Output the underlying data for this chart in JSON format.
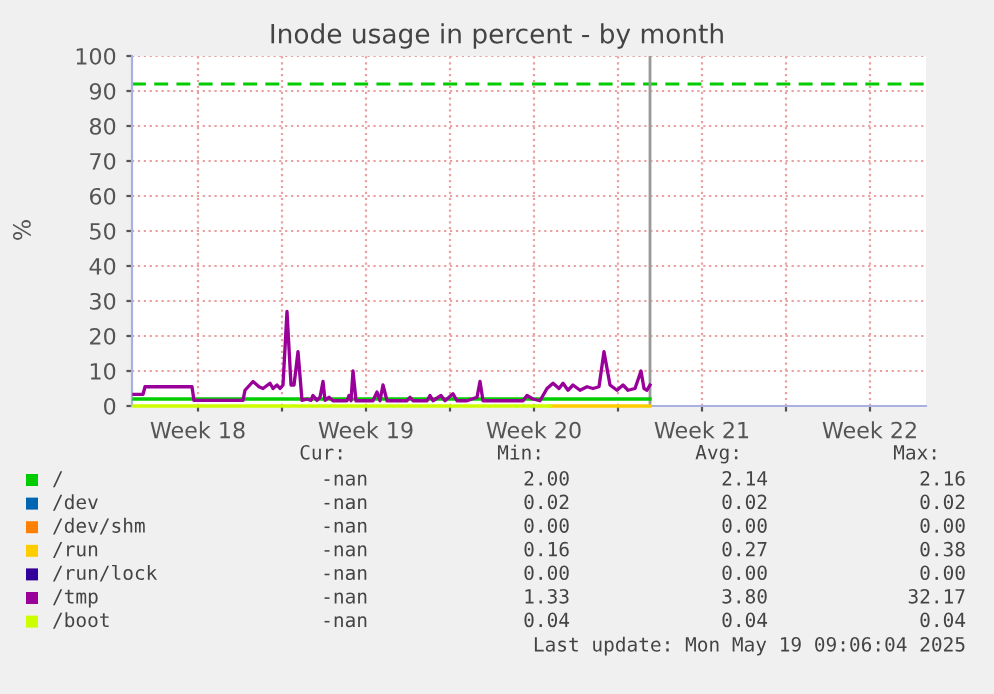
{
  "chart_data": {
    "type": "line",
    "title": "Inode usage in percent - by month",
    "ylabel": "%",
    "xlim": [
      "2025-04-28T18:00",
      "2025-05-31T20:00"
    ],
    "ylim": [
      0,
      100
    ],
    "xticks": [
      {
        "value": "2025-05-01T12:00",
        "label": "Week 18"
      },
      {
        "value": "2025-05-05T00:00",
        "label": null
      },
      {
        "value": "2025-05-08T12:00",
        "label": "Week 19"
      },
      {
        "value": "2025-05-12T00:00",
        "label": null
      },
      {
        "value": "2025-05-15T12:00",
        "label": "Week 20"
      },
      {
        "value": "2025-05-19T00:00",
        "label": null
      },
      {
        "value": "2025-05-22T12:00",
        "label": "Week 21"
      },
      {
        "value": "2025-05-26T00:00",
        "label": null
      },
      {
        "value": "2025-05-29T12:00",
        "label": "Week 22"
      }
    ],
    "yticks": [
      0,
      10,
      20,
      30,
      40,
      50,
      60,
      70,
      80,
      90,
      100
    ],
    "grid": true,
    "legend": "bottom",
    "line_style": "solid",
    "series": [
      {
        "name": "/",
        "color": "#00cc00",
        "x": [
          "2025-04-28T20:00",
          "2025-05-20T08:00"
        ],
        "values": [
          2,
          2
        ]
      },
      {
        "name": "/dev",
        "color": "#0066b3"
      },
      {
        "name": "/dev/shm",
        "color": "#ff8000"
      },
      {
        "name": "/run",
        "color": "#ffcc00",
        "x": [
          "2025-05-16T04:00",
          "2025-05-20T08:00"
        ],
        "values": [
          0,
          0
        ]
      },
      {
        "name": "/run/lock",
        "color": "#330099"
      },
      {
        "name": "/tmp",
        "color": "#990099",
        "x": [
          "2025-04-28T20:00",
          "2025-04-29T05:00",
          "2025-04-29T07:00",
          "2025-05-01T06:00",
          "2025-05-01T08:00",
          "2025-05-03T09:00",
          "2025-05-03T11:00",
          "2025-05-03T19:00",
          "2025-05-04T01:00",
          "2025-05-04T05:00",
          "2025-05-04T12:00",
          "2025-05-04T15:00",
          "2025-05-04T19:00",
          "2025-05-04T22:00",
          "2025-05-05T01:00",
          "2025-05-05T05:00",
          "2025-05-05T09:00",
          "2025-05-05T12:00",
          "2025-05-05T16:00",
          "2025-05-05T20:00",
          "2025-05-06T01:00",
          "2025-05-06T05:00",
          "2025-05-06T07:00",
          "2025-05-06T11:00",
          "2025-05-06T14:00",
          "2025-05-06T17:00",
          "2025-05-06T19:00",
          "2025-05-06T23:00",
          "2025-05-07T03:00",
          "2025-05-07T17:00",
          "2025-05-07T19:00",
          "2025-05-07T21:00",
          "2025-05-07T23:00",
          "2025-05-08T02:00",
          "2025-05-08T19:00",
          "2025-05-08T23:00",
          "2025-05-09T02:00",
          "2025-05-09T05:00",
          "2025-05-09T09:00",
          "2025-05-10T05:00",
          "2025-05-10T08:00",
          "2025-05-10T11:00",
          "2025-05-11T01:00",
          "2025-05-11T04:00",
          "2025-05-11T07:00",
          "2025-05-11T15:00",
          "2025-05-11T19:00",
          "2025-05-12T03:00",
          "2025-05-12T07:00",
          "2025-05-12T17:00",
          "2025-05-13T03:00",
          "2025-05-13T06:00",
          "2025-05-13T09:00",
          "2025-05-15T01:00",
          "2025-05-15T05:00",
          "2025-05-15T11:00",
          "2025-05-15T18:00",
          "2025-05-16T01:00",
          "2025-05-16T07:00",
          "2025-05-16T13:00",
          "2025-05-16T17:00",
          "2025-05-16T22:00",
          "2025-05-17T03:00",
          "2025-05-17T10:00",
          "2025-05-17T17:00",
          "2025-05-17T23:00",
          "2025-05-18T05:00",
          "2025-05-18T10:00",
          "2025-05-18T16:00",
          "2025-05-18T23:00",
          "2025-05-19T05:00",
          "2025-05-19T10:00",
          "2025-05-19T17:00",
          "2025-05-19T23:00",
          "2025-05-20T02:00",
          "2025-05-20T05:00",
          "2025-05-20T08:00"
        ],
        "values": [
          3.3,
          3.3,
          5.5,
          5.5,
          1.6,
          1.6,
          4.5,
          7,
          5.5,
          5,
          6.5,
          5,
          6,
          5,
          6,
          27,
          6,
          6,
          15.5,
          1.6,
          2,
          1.6,
          3,
          1.6,
          2.5,
          7,
          1.6,
          2.5,
          1.5,
          1.5,
          3,
          1.5,
          10,
          1.5,
          1.5,
          4,
          1.5,
          6,
          1.5,
          1.5,
          2.5,
          1.5,
          1.5,
          3,
          1.5,
          3,
          1.5,
          3.5,
          1.5,
          1.5,
          2.5,
          7,
          1.5,
          1.5,
          3,
          2,
          1.5,
          5,
          6.5,
          5,
          6.5,
          4.5,
          6,
          4.5,
          5.5,
          5,
          5.5,
          15.5,
          6,
          4.5,
          6,
          4.5,
          5,
          10,
          5,
          4.5,
          6
        ]
      },
      {
        "name": "/boot",
        "color": "#ccff00",
        "x": [
          "2025-04-28T20:00",
          "2025-05-16T04:00"
        ],
        "values": [
          0,
          0
        ]
      }
    ],
    "ref_lines": [
      {
        "axis": "y",
        "value": 92,
        "color": "#00cc00",
        "line_style": "dashed"
      },
      {
        "axis": "x",
        "value": "2025-05-20T08:00",
        "color": "#999999",
        "line_style": "solid"
      }
    ],
    "annotations": [
      "Cur:",
      "Min:",
      "Avg:",
      "Max:",
      "-nan",
      "2.00",
      "2.14",
      "2.16",
      "-nan",
      "0.02",
      "0.02",
      "0.02",
      "-nan",
      "0.00",
      "0.00",
      "0.00",
      "-nan",
      "0.16",
      "0.27",
      "0.38",
      "-nan",
      "0.00",
      "0.00",
      "0.00",
      "-nan",
      "1.33",
      "3.80",
      "32.17",
      "-nan",
      "0.04",
      "0.04",
      "0.04",
      "Last update: Mon May 19 09:06:04 2025"
    ]
  }
}
